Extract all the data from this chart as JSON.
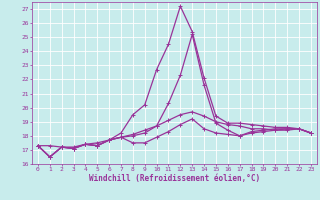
{
  "xlabel": "Windchill (Refroidissement éolien,°C)",
  "ylabel": "",
  "bg_color": "#c8ecec",
  "grid_color": "#ffffff",
  "line_color": "#993399",
  "xlim": [
    -0.5,
    23.5
  ],
  "ylim": [
    16,
    27.5
  ],
  "xticks": [
    0,
    1,
    2,
    3,
    4,
    5,
    6,
    7,
    8,
    9,
    10,
    11,
    12,
    13,
    14,
    15,
    16,
    17,
    18,
    19,
    20,
    21,
    22,
    23
  ],
  "yticks": [
    16,
    17,
    18,
    19,
    20,
    21,
    22,
    23,
    24,
    25,
    26,
    27
  ],
  "series": [
    [
      17.3,
      16.5,
      17.2,
      17.1,
      17.4,
      17.3,
      17.7,
      17.9,
      17.5,
      17.5,
      17.9,
      18.3,
      18.8,
      19.2,
      18.5,
      18.2,
      18.1,
      18.0,
      18.2,
      18.3,
      18.4,
      18.4,
      18.5,
      18.2
    ],
    [
      17.3,
      16.5,
      17.2,
      17.1,
      17.4,
      17.3,
      17.7,
      17.9,
      18.0,
      18.2,
      18.7,
      20.3,
      22.3,
      25.2,
      21.6,
      18.9,
      18.4,
      18.0,
      18.3,
      18.4,
      18.5,
      18.5,
      18.5,
      18.2
    ],
    [
      17.3,
      16.5,
      17.2,
      17.1,
      17.4,
      17.3,
      17.7,
      18.2,
      19.5,
      20.2,
      22.7,
      24.5,
      27.2,
      25.4,
      22.1,
      19.4,
      18.9,
      18.9,
      18.8,
      18.7,
      18.6,
      18.6,
      18.5,
      18.2
    ],
    [
      17.3,
      17.3,
      17.2,
      17.2,
      17.4,
      17.5,
      17.7,
      17.9,
      18.1,
      18.4,
      18.7,
      19.1,
      19.5,
      19.7,
      19.4,
      19.0,
      18.8,
      18.7,
      18.5,
      18.5,
      18.4,
      18.5,
      18.5,
      18.2
    ]
  ],
  "marker": "+",
  "markersize": 3,
  "linewidth": 0.9,
  "tick_fontsize": 4.5,
  "label_fontsize": 5.5
}
